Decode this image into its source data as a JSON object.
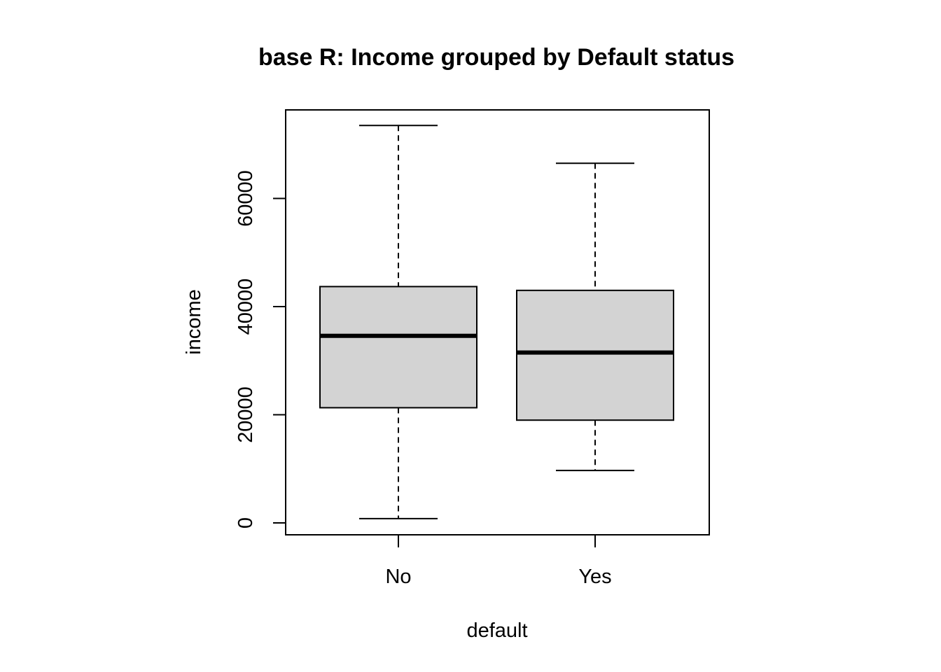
{
  "chart_data": {
    "type": "boxplot",
    "title": "base R: Income grouped by Default status",
    "xlabel": "default",
    "ylabel": "income",
    "categories": [
      "No",
      "Yes"
    ],
    "boxes": [
      {
        "category": "No",
        "whisker_low": 800,
        "q1": 21300,
        "median": 34600,
        "q3": 43700,
        "whisker_high": 73500
      },
      {
        "category": "Yes",
        "whisker_low": 9700,
        "q1": 19000,
        "median": 31500,
        "q3": 43000,
        "whisker_high": 66500
      }
    ],
    "yticks": [
      0,
      20000,
      40000,
      60000
    ],
    "ytick_labels": [
      "0",
      "20000",
      "40000",
      "60000"
    ],
    "ylim": [
      -2000,
      76500
    ],
    "grid": false,
    "box_fill": "#d3d3d3",
    "line_color": "#000000"
  }
}
